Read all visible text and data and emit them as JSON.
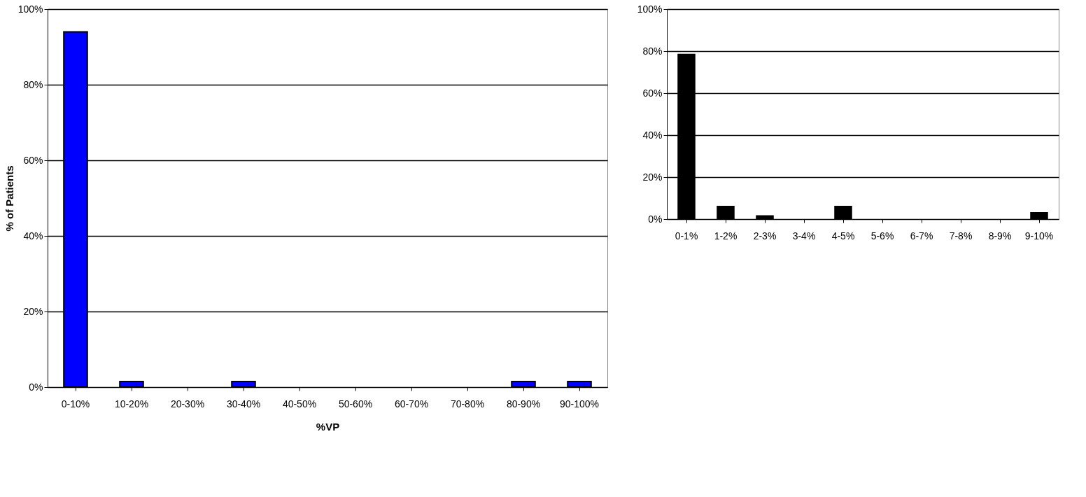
{
  "chart_data": [
    {
      "type": "bar",
      "xlabel": "%VP",
      "ylabel": "% of Patients",
      "categories": [
        "0-10%",
        "10-20%",
        "20-30%",
        "30-40%",
        "40-50%",
        "50-60%",
        "60-70%",
        "70-80%",
        "80-90%",
        "90-100%"
      ],
      "values": [
        94,
        1.5,
        0,
        1.5,
        0,
        0,
        0,
        0,
        1.5,
        1.5
      ],
      "color": "#0000ff",
      "ylim": [
        0,
        100
      ],
      "yticks": [
        {
          "value": 0,
          "label": "0%"
        },
        {
          "value": 20,
          "label": "20%"
        },
        {
          "value": 40,
          "label": "40%"
        },
        {
          "value": 60,
          "label": "60%"
        },
        {
          "value": 80,
          "label": "80%"
        },
        {
          "value": 100,
          "label": "100%"
        }
      ],
      "grid": "y"
    },
    {
      "type": "bar",
      "categories": [
        "0-1%",
        "1-2%",
        "2-3%",
        "3-4%",
        "4-5%",
        "5-6%",
        "6-7%",
        "7-8%",
        "8-9%",
        "9-10%"
      ],
      "values": [
        78.4,
        6,
        1.5,
        0,
        6,
        0,
        0,
        0,
        0,
        3
      ],
      "color": "#000000",
      "ylim": [
        0,
        100
      ],
      "yticks": [
        {
          "value": 0,
          "label": "0%"
        },
        {
          "value": 20,
          "label": "20%"
        },
        {
          "value": 40,
          "label": "40%"
        },
        {
          "value": 60,
          "label": "60%"
        },
        {
          "value": 80,
          "label": "80%"
        },
        {
          "value": 100,
          "label": "100%"
        }
      ],
      "grid": "y"
    }
  ]
}
